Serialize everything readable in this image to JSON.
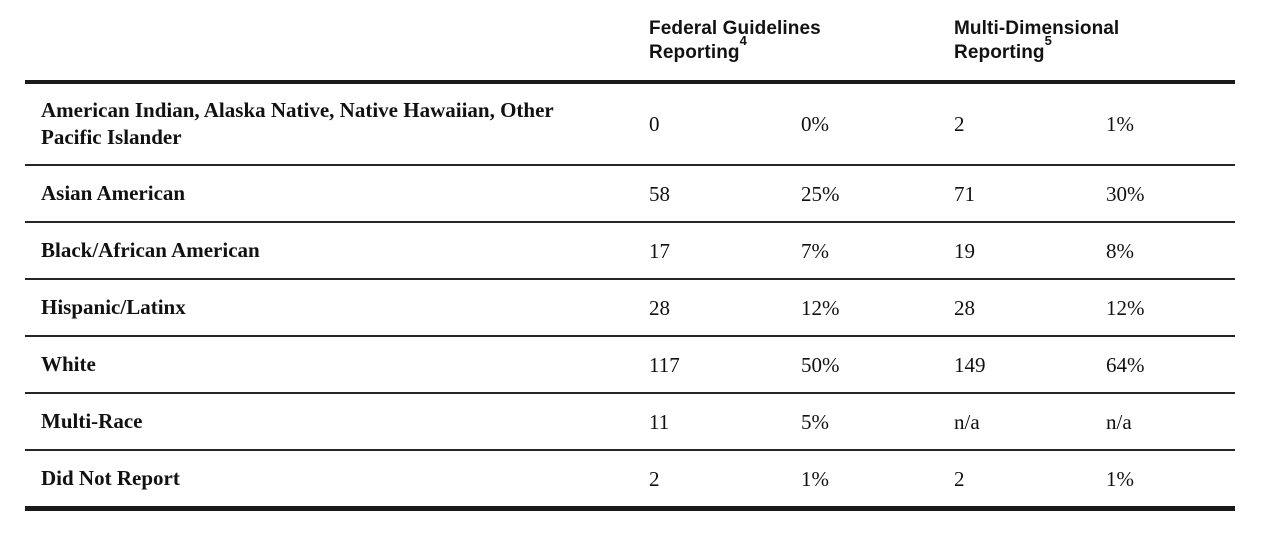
{
  "colors": {
    "background": "#ffffff",
    "text": "#111111",
    "rules": "#1a1a1a"
  },
  "table": {
    "column_groups": [
      {
        "line1": "Federal Guidelines",
        "line2": "Reporting",
        "superscript": "4"
      },
      {
        "line1": "Multi-Dimensional",
        "line2": "Reporting",
        "superscript": "5"
      }
    ],
    "rows": [
      {
        "label": "American Indian, Alaska Native, Native Hawaiian, Other Pacific Islander",
        "fg_count": "0",
        "fg_pct": "0%",
        "md_count": "2",
        "md_pct": "1%"
      },
      {
        "label": "Asian American",
        "fg_count": "58",
        "fg_pct": "25%",
        "md_count": "71",
        "md_pct": "30%"
      },
      {
        "label": "Black/African American",
        "fg_count": "17",
        "fg_pct": "7%",
        "md_count": "19",
        "md_pct": "8%"
      },
      {
        "label": "Hispanic/Latinx",
        "fg_count": "28",
        "fg_pct": "12%",
        "md_count": "28",
        "md_pct": "12%"
      },
      {
        "label": "White",
        "fg_count": "117",
        "fg_pct": "50%",
        "md_count": "149",
        "md_pct": "64%"
      },
      {
        "label": "Multi-Race",
        "fg_count": "11",
        "fg_pct": "5%",
        "md_count": "n/a",
        "md_pct": "n/a"
      },
      {
        "label": "Did Not Report",
        "fg_count": "2",
        "fg_pct": "1%",
        "md_count": "2",
        "md_pct": "1%"
      }
    ]
  }
}
